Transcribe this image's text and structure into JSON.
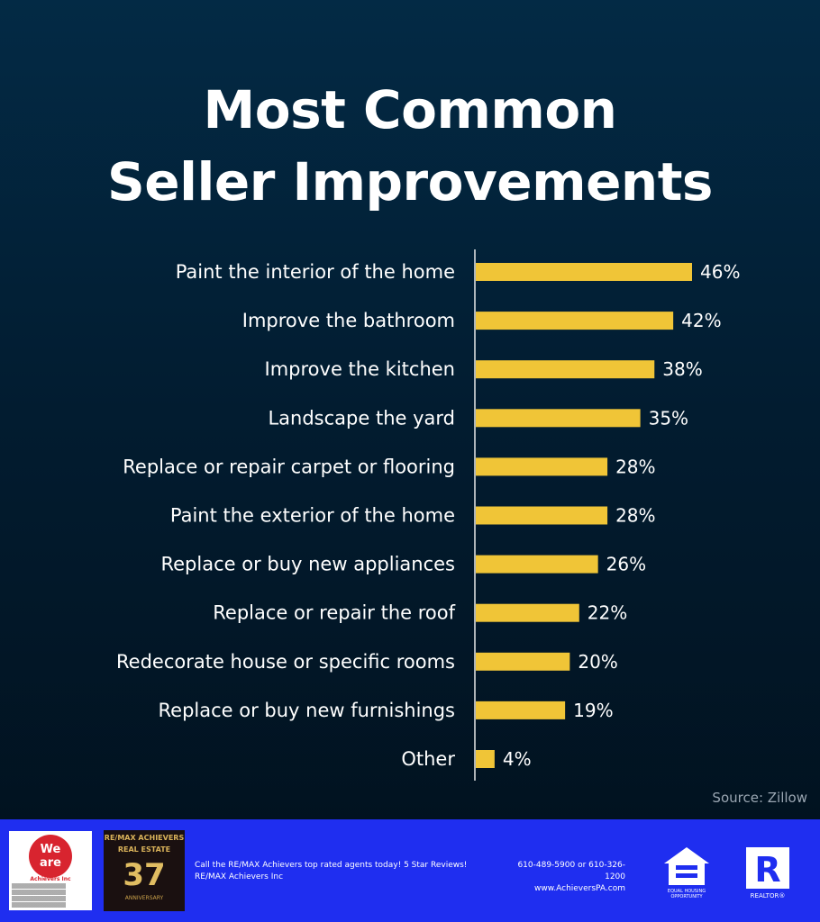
{
  "chart_data": {
    "type": "bar",
    "orientation": "horizontal",
    "title": "Most Common Seller Improvements",
    "title_lines": [
      "Most Common",
      "Seller Improvements"
    ],
    "categories": [
      "Paint the interior of the home",
      "Improve the bathroom",
      "Improve the kitchen",
      "Landscape the yard",
      "Replace or repair carpet or flooring",
      "Paint the exterior of the home",
      "Replace or buy new appliances",
      "Replace or repair the roof",
      "Redecorate house or specific rooms",
      "Replace or buy new furnishings",
      "Other"
    ],
    "values": [
      46,
      42,
      38,
      35,
      28,
      28,
      26,
      22,
      20,
      19,
      4
    ],
    "value_labels": [
      "46%",
      "42%",
      "38%",
      "35%",
      "28%",
      "28%",
      "26%",
      "22%",
      "20%",
      "19%",
      "4%"
    ],
    "xlim": [
      0,
      46
    ],
    "grid": false,
    "bar_color": "#f0c537",
    "source": "Source: Zillow"
  },
  "footer": {
    "cta_line1": "Call the RE/MAX Achievers top rated agents today! 5 Star Reviews!",
    "cta_line2": "RE/MAX Achievers Inc",
    "phone": "610-489-5900 or 610-326-1200",
    "website": "www.AchieversPA.com",
    "logo1_text_line1": "We",
    "logo1_text_line2": "are",
    "logo1_sub": "Achievers Inc",
    "logo2_title_line1": "RE/MAX ACHIEVERS",
    "logo2_title_line2": "REAL ESTATE",
    "logo2_big": "37",
    "logo2_sub": "ANNIVERSARY",
    "eho_label": "EQUAL HOUSING OPPORTUNITY",
    "realtor_label": "REALTOR®",
    "colors": {
      "footer_bg": "#1f2ef0"
    }
  }
}
